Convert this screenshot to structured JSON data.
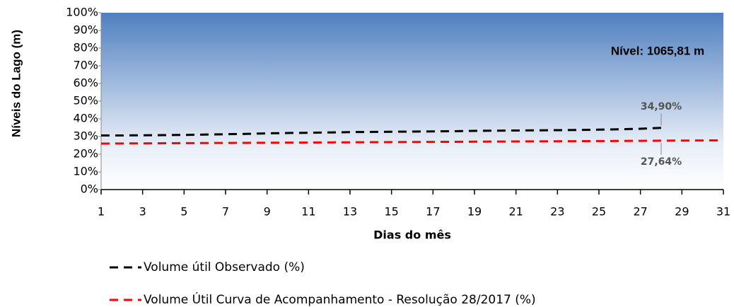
{
  "chart_data": {
    "type": "line",
    "y_label": "Níveis do Lago (m)",
    "x_label": "Dias do mês",
    "annotation": "Nível: 1065,81 m",
    "x": [
      1,
      2,
      3,
      4,
      5,
      6,
      7,
      8,
      9,
      10,
      11,
      12,
      13,
      14,
      15,
      16,
      17,
      18,
      19,
      20,
      21,
      22,
      23,
      24,
      25,
      26,
      27,
      28,
      29,
      30,
      31
    ],
    "xlim": [
      1,
      31
    ],
    "xticks": [
      1,
      3,
      5,
      7,
      9,
      11,
      13,
      15,
      17,
      19,
      21,
      23,
      25,
      27,
      29,
      31
    ],
    "ylim": [
      0,
      100
    ],
    "yticks": [
      {
        "value": 0,
        "label": "0%"
      },
      {
        "value": 10,
        "label": "10%"
      },
      {
        "value": 20,
        "label": "20%"
      },
      {
        "value": 30,
        "label": "30%"
      },
      {
        "value": 40,
        "label": "40%"
      },
      {
        "value": 50,
        "label": "50%"
      },
      {
        "value": 60,
        "label": "60%"
      },
      {
        "value": 70,
        "label": "70%"
      },
      {
        "value": 80,
        "label": "80%"
      },
      {
        "value": 90,
        "label": "90%"
      },
      {
        "value": 100,
        "label": "100%"
      }
    ],
    "legend": "bottom",
    "series": [
      {
        "name": "Volume útil Observado (%)",
        "color": "#000000",
        "values": [
          30.6,
          30.6,
          30.7,
          30.8,
          30.9,
          31.1,
          31.3,
          31.5,
          31.8,
          32.0,
          32.1,
          32.3,
          32.5,
          32.6,
          32.7,
          32.8,
          32.9,
          33.0,
          33.2,
          33.3,
          33.4,
          33.5,
          33.6,
          33.7,
          33.9,
          34.1,
          34.4,
          34.9,
          null,
          null,
          null
        ],
        "value_labels": [
          null,
          null,
          null,
          null,
          null,
          null,
          null,
          null,
          null,
          null,
          null,
          null,
          null,
          null,
          null,
          null,
          null,
          null,
          null,
          null,
          null,
          null,
          null,
          null,
          null,
          null,
          null,
          "34,90%",
          null,
          null,
          null
        ]
      },
      {
        "name": "Volume Útil Curva de Acompanhamento - Resolução 28/2017 (%)",
        "color": "#ff0000",
        "values": [
          26.0,
          26.06,
          26.12,
          26.18,
          26.24,
          26.3,
          26.36,
          26.42,
          26.48,
          26.54,
          26.6,
          26.66,
          26.72,
          26.78,
          26.84,
          26.9,
          26.96,
          27.02,
          27.08,
          27.14,
          27.2,
          27.26,
          27.32,
          27.38,
          27.44,
          27.5,
          27.57,
          27.64,
          27.7,
          27.76,
          27.82
        ],
        "value_labels": [
          null,
          null,
          null,
          null,
          null,
          null,
          null,
          null,
          null,
          null,
          null,
          null,
          null,
          null,
          null,
          null,
          null,
          null,
          null,
          null,
          null,
          null,
          null,
          null,
          null,
          null,
          null,
          "27,64%",
          null,
          null,
          null
        ]
      }
    ]
  }
}
